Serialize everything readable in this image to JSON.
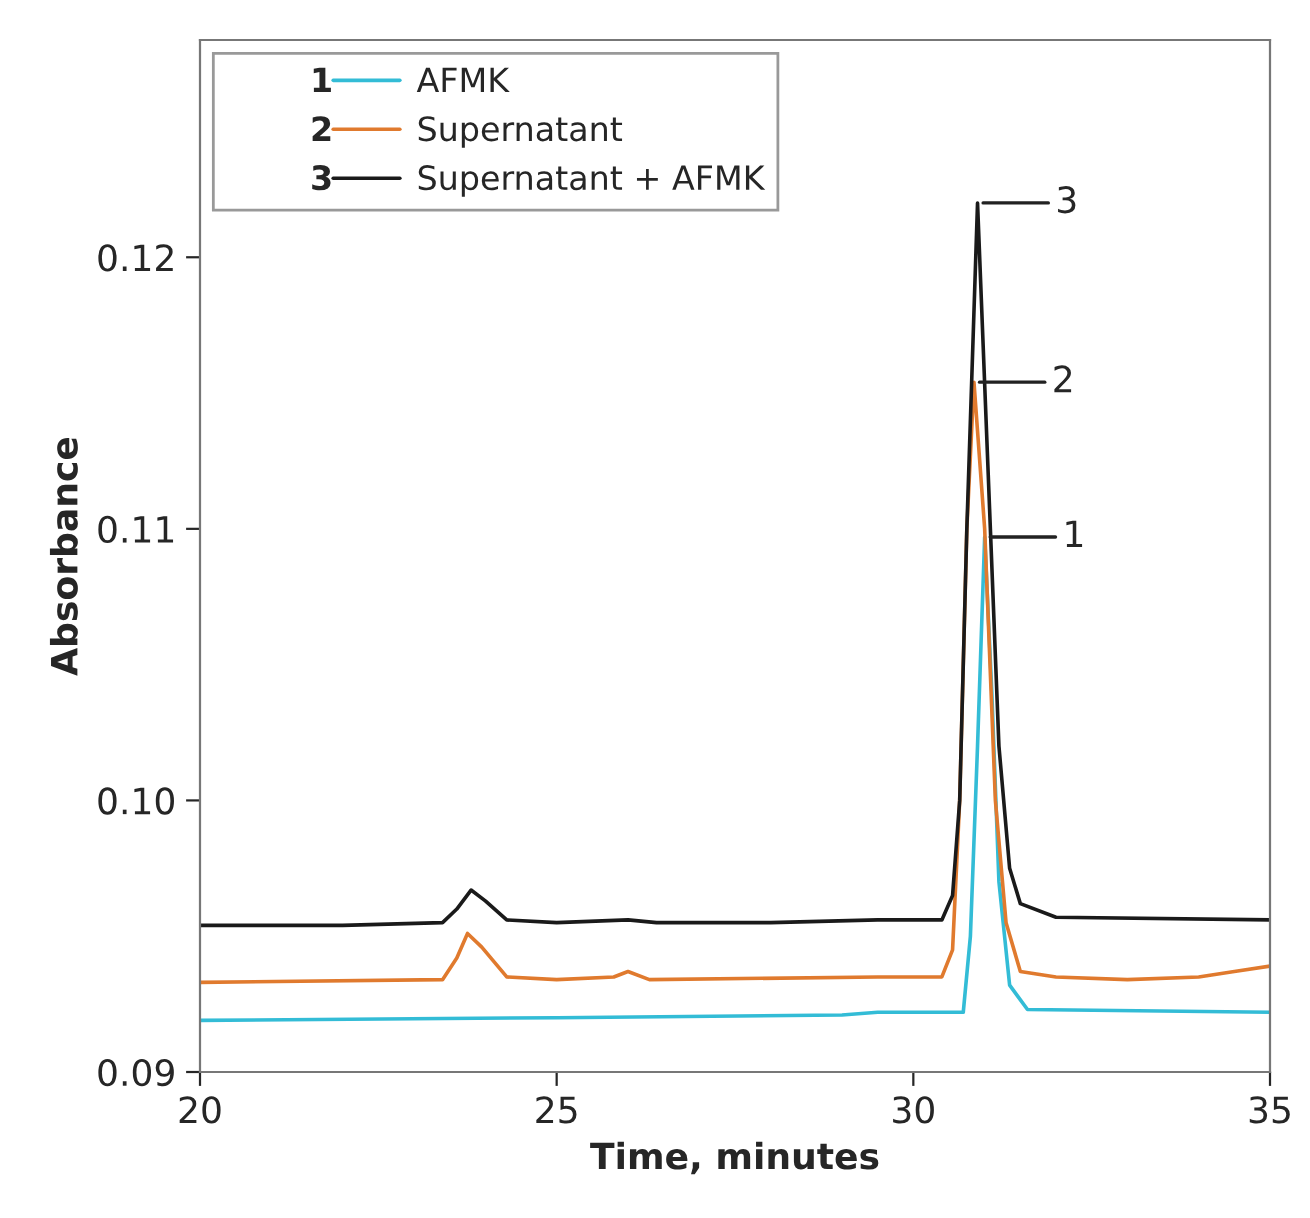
{
  "chart_data": {
    "type": "line",
    "xlabel": "Time, minutes",
    "ylabel": "Absorbance",
    "xlim": [
      20,
      35
    ],
    "xticks": [
      20,
      25,
      30,
      35
    ],
    "ylim": [
      0.09,
      0.128
    ],
    "yticks": [
      {
        "value": 0.09,
        "label": "0.09"
      },
      {
        "value": 0.1,
        "label": "0.10"
      },
      {
        "value": 0.11,
        "label": "0.11"
      },
      {
        "value": 0.12,
        "label": "0.12"
      }
    ],
    "grid": false,
    "legend": "top left",
    "series": [
      {
        "name": "AFMK",
        "color": "#33bcd6",
        "x": [
          20,
          25,
          29,
          29.5,
          30.7,
          30.8,
          30.9,
          31.0,
          31.1,
          31.2,
          31.35,
          31.6,
          35
        ],
        "values": [
          0.0919,
          0.092,
          0.0921,
          0.0922,
          0.0922,
          0.095,
          0.102,
          0.1097,
          0.104,
          0.097,
          0.0932,
          0.0923,
          0.0922
        ]
      },
      {
        "name": "Supernatant",
        "color": "#e07a2e",
        "x": [
          20,
          23.4,
          23.6,
          23.75,
          23.95,
          24.3,
          25,
          25.8,
          26,
          26.3,
          29.5,
          30.4,
          30.55,
          30.65,
          30.75,
          30.85,
          31.0,
          31.15,
          31.3,
          31.5,
          32,
          33,
          34,
          34.5,
          35
        ],
        "values": [
          0.0933,
          0.0934,
          0.0942,
          0.0951,
          0.0946,
          0.0935,
          0.0934,
          0.0935,
          0.0937,
          0.0934,
          0.0935,
          0.0935,
          0.0945,
          0.1,
          0.11,
          0.1154,
          0.11,
          0.1,
          0.0955,
          0.0937,
          0.0935,
          0.0934,
          0.0935,
          0.0937,
          0.0939
        ]
      },
      {
        "name": "Supernatant + AFMK",
        "color": "#1a1a1a",
        "x": [
          20,
          22,
          23.4,
          23.6,
          23.8,
          24.0,
          24.3,
          25,
          26,
          26.4,
          28,
          29.5,
          30.4,
          30.55,
          30.65,
          30.75,
          30.9,
          31.05,
          31.2,
          31.35,
          31.5,
          32,
          35
        ],
        "values": [
          0.0954,
          0.0954,
          0.0955,
          0.096,
          0.0967,
          0.0963,
          0.0956,
          0.0955,
          0.0956,
          0.0955,
          0.0955,
          0.0956,
          0.0956,
          0.0965,
          0.1,
          0.11,
          0.122,
          0.112,
          0.102,
          0.0975,
          0.0962,
          0.0957,
          0.0956
        ]
      }
    ],
    "annotations": [
      "1",
      "2",
      "3",
      {
        "text": "1",
        "x": 31.0,
        "y": 0.1097
      },
      {
        "text": "2",
        "x": 30.85,
        "y": 0.1154
      },
      {
        "text": "3",
        "x": 30.9,
        "y": 0.122
      }
    ]
  }
}
